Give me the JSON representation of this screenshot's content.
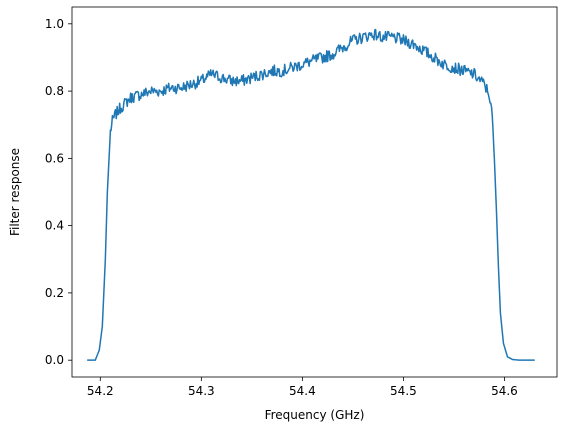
{
  "chart_data": {
    "type": "line",
    "title": "",
    "xlabel": "Frequency (GHz)",
    "ylabel": "Filter response",
    "xlim": [
      54.172,
      54.652
    ],
    "ylim": [
      -0.05,
      1.05
    ],
    "x_ticks": [
      54.2,
      54.3,
      54.4,
      54.5,
      54.6
    ],
    "y_ticks": [
      0.0,
      0.2,
      0.4,
      0.6,
      0.8,
      1.0
    ],
    "x_tick_labels": [
      "54.2",
      "54.3",
      "54.4",
      "54.5",
      "54.6"
    ],
    "y_tick_labels": [
      "0.0",
      "0.2",
      "0.4",
      "0.6",
      "0.8",
      "1.0"
    ],
    "grid": false,
    "legend": "none",
    "color": "#1f77b4",
    "series": [
      {
        "x": [
          54.187,
          54.195,
          54.199,
          54.202,
          54.205,
          54.207,
          54.209,
          54.21,
          54.212,
          54.215,
          54.22,
          54.23,
          54.24,
          54.25,
          54.26,
          54.27,
          54.28,
          54.29,
          54.3,
          54.31,
          54.32,
          54.33,
          54.34,
          54.35,
          54.36,
          54.37,
          54.38,
          54.39,
          54.4,
          54.41,
          54.42,
          54.43,
          54.44,
          54.45,
          54.46,
          54.47,
          54.48,
          54.49,
          54.5,
          54.51,
          54.52,
          54.53,
          54.54,
          54.55,
          54.56,
          54.57,
          54.58,
          54.585,
          54.588,
          54.59,
          54.592,
          54.594,
          54.596,
          54.599,
          54.603,
          54.608,
          54.615,
          54.63
        ],
        "y": [
          0.0,
          0.0,
          0.03,
          0.1,
          0.3,
          0.5,
          0.62,
          0.68,
          0.71,
          0.73,
          0.75,
          0.78,
          0.79,
          0.8,
          0.8,
          0.81,
          0.81,
          0.82,
          0.83,
          0.85,
          0.84,
          0.83,
          0.83,
          0.84,
          0.85,
          0.86,
          0.86,
          0.87,
          0.88,
          0.89,
          0.9,
          0.91,
          0.93,
          0.95,
          0.96,
          0.97,
          0.96,
          0.96,
          0.95,
          0.94,
          0.92,
          0.9,
          0.88,
          0.87,
          0.86,
          0.85,
          0.82,
          0.79,
          0.72,
          0.6,
          0.45,
          0.28,
          0.14,
          0.05,
          0.01,
          0.002,
          0.0,
          0.0
        ]
      }
    ]
  }
}
